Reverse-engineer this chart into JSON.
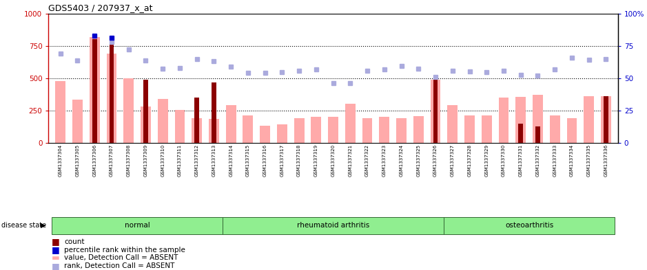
{
  "title": "GDS5403 / 207937_x_at",
  "samples": [
    "GSM1337304",
    "GSM1337305",
    "GSM1337306",
    "GSM1337307",
    "GSM1337308",
    "GSM1337309",
    "GSM1337310",
    "GSM1337311",
    "GSM1337312",
    "GSM1337313",
    "GSM1337314",
    "GSM1337315",
    "GSM1337316",
    "GSM1337317",
    "GSM1337318",
    "GSM1337319",
    "GSM1337320",
    "GSM1337321",
    "GSM1337322",
    "GSM1337323",
    "GSM1337324",
    "GSM1337325",
    "GSM1337326",
    "GSM1337327",
    "GSM1337328",
    "GSM1337329",
    "GSM1337330",
    "GSM1337331",
    "GSM1337332",
    "GSM1337333",
    "GSM1337334",
    "GSM1337335",
    "GSM1337336"
  ],
  "pink_bars": [
    480,
    335,
    820,
    690,
    500,
    285,
    340,
    255,
    195,
    185,
    295,
    215,
    135,
    145,
    195,
    205,
    205,
    305,
    195,
    205,
    195,
    210,
    490,
    295,
    215,
    215,
    350,
    355,
    375,
    215,
    195,
    360,
    360
  ],
  "dark_red_bars": [
    null,
    null,
    800,
    810,
    null,
    490,
    null,
    null,
    350,
    470,
    null,
    null,
    null,
    null,
    null,
    null,
    null,
    null,
    null,
    null,
    null,
    null,
    490,
    null,
    null,
    null,
    null,
    150,
    130,
    null,
    null,
    null,
    360
  ],
  "blue_squares": [
    null,
    null,
    830,
    810,
    null,
    null,
    null,
    null,
    null,
    null,
    null,
    null,
    null,
    null,
    null,
    null,
    null,
    null,
    null,
    null,
    null,
    null,
    null,
    null,
    null,
    null,
    null,
    null,
    null,
    null,
    null,
    null,
    null
  ],
  "light_blue_squares": [
    690,
    640,
    null,
    780,
    720,
    640,
    575,
    580,
    650,
    630,
    590,
    540,
    540,
    545,
    560,
    570,
    465,
    465,
    560,
    570,
    595,
    575,
    510,
    560,
    555,
    550,
    560,
    525,
    520,
    570,
    660,
    645,
    650
  ],
  "groups": [
    {
      "name": "normal",
      "start": 0,
      "end": 9
    },
    {
      "name": "rheumatoid arthritis",
      "start": 10,
      "end": 22
    },
    {
      "name": "osteoarthritis",
      "start": 23,
      "end": 32
    }
  ],
  "ylim_left": [
    0,
    1000
  ],
  "ylim_right": [
    0,
    100
  ],
  "yticks_left": [
    0,
    250,
    500,
    750,
    1000
  ],
  "yticks_right": [
    0,
    25,
    50,
    75,
    100
  ],
  "left_axis_color": "#cc0000",
  "right_axis_color": "#0000cc",
  "pink_bar_color": "#ffaaaa",
  "dark_red_bar_color": "#8b0000",
  "blue_square_color": "#0000cc",
  "light_blue_square_color": "#aaaadd",
  "group_color": "#90ee90",
  "group_border_color": "#336633",
  "grid_color": "#000000",
  "bg_color": "#ffffff"
}
